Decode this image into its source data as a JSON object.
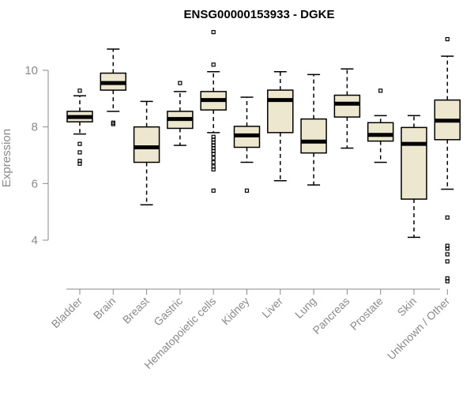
{
  "chart_data": {
    "type": "boxplot",
    "title": "ENSG00000153933 - DGKE",
    "xlabel": "",
    "ylabel": "Expression",
    "ylim": [
      2.4,
      11.4
    ],
    "yticks": [
      4,
      6,
      8,
      10
    ],
    "box_fill": "#ede7cf",
    "categories": [
      "Bladder",
      "Brain",
      "Breast",
      "Gastric",
      "Hematopoietic cells",
      "Kidney",
      "Liver",
      "Lung",
      "Pancreas",
      "Prostate",
      "Skin",
      "Unknown / Other"
    ],
    "boxes": [
      {
        "category": "Bladder",
        "whisker_low": 7.75,
        "q1": 8.18,
        "median": 8.35,
        "q3": 8.55,
        "whisker_high": 9.1,
        "outliers": [
          9.28,
          7.4,
          7.1,
          6.8,
          6.7
        ]
      },
      {
        "category": "Brain",
        "whisker_low": 8.55,
        "q1": 9.3,
        "median": 9.55,
        "q3": 9.9,
        "whisker_high": 10.75,
        "outliers": [
          8.15,
          8.1
        ]
      },
      {
        "category": "Breast",
        "whisker_low": 5.25,
        "q1": 6.75,
        "median": 7.28,
        "q3": 8.0,
        "whisker_high": 8.9,
        "outliers": []
      },
      {
        "category": "Gastric",
        "whisker_low": 7.35,
        "q1": 7.95,
        "median": 8.28,
        "q3": 8.55,
        "whisker_high": 9.25,
        "outliers": [
          9.55
        ]
      },
      {
        "category": "Hematopoietic cells",
        "whisker_low": 7.8,
        "q1": 8.6,
        "median": 8.95,
        "q3": 9.25,
        "whisker_high": 9.95,
        "outliers": [
          11.35,
          10.2,
          7.65,
          7.55,
          7.45,
          7.35,
          7.25,
          7.15,
          7.05,
          6.9,
          6.75,
          6.6,
          6.5,
          5.75
        ]
      },
      {
        "category": "Kidney",
        "whisker_low": 6.75,
        "q1": 7.28,
        "median": 7.7,
        "q3": 8.02,
        "whisker_high": 9.05,
        "outliers": [
          5.75
        ]
      },
      {
        "category": "Liver",
        "whisker_low": 6.1,
        "q1": 7.8,
        "median": 8.95,
        "q3": 9.3,
        "whisker_high": 9.95,
        "outliers": []
      },
      {
        "category": "Lung",
        "whisker_low": 5.95,
        "q1": 7.08,
        "median": 7.48,
        "q3": 8.28,
        "whisker_high": 9.85,
        "outliers": []
      },
      {
        "category": "Pancreas",
        "whisker_low": 7.25,
        "q1": 8.35,
        "median": 8.82,
        "q3": 9.12,
        "whisker_high": 10.05,
        "outliers": []
      },
      {
        "category": "Prostate",
        "whisker_low": 6.75,
        "q1": 7.5,
        "median": 7.72,
        "q3": 8.15,
        "whisker_high": 8.4,
        "outliers": [
          9.28
        ]
      },
      {
        "category": "Skin",
        "whisker_low": 4.1,
        "q1": 5.45,
        "median": 7.4,
        "q3": 7.98,
        "whisker_high": 8.4,
        "outliers": []
      },
      {
        "category": "Unknown / Other",
        "whisker_low": 5.8,
        "q1": 7.55,
        "median": 8.22,
        "q3": 8.95,
        "whisker_high": 10.5,
        "outliers": [
          11.1,
          4.8,
          3.8,
          3.7,
          3.5,
          3.25,
          2.65,
          2.55
        ]
      }
    ]
  }
}
